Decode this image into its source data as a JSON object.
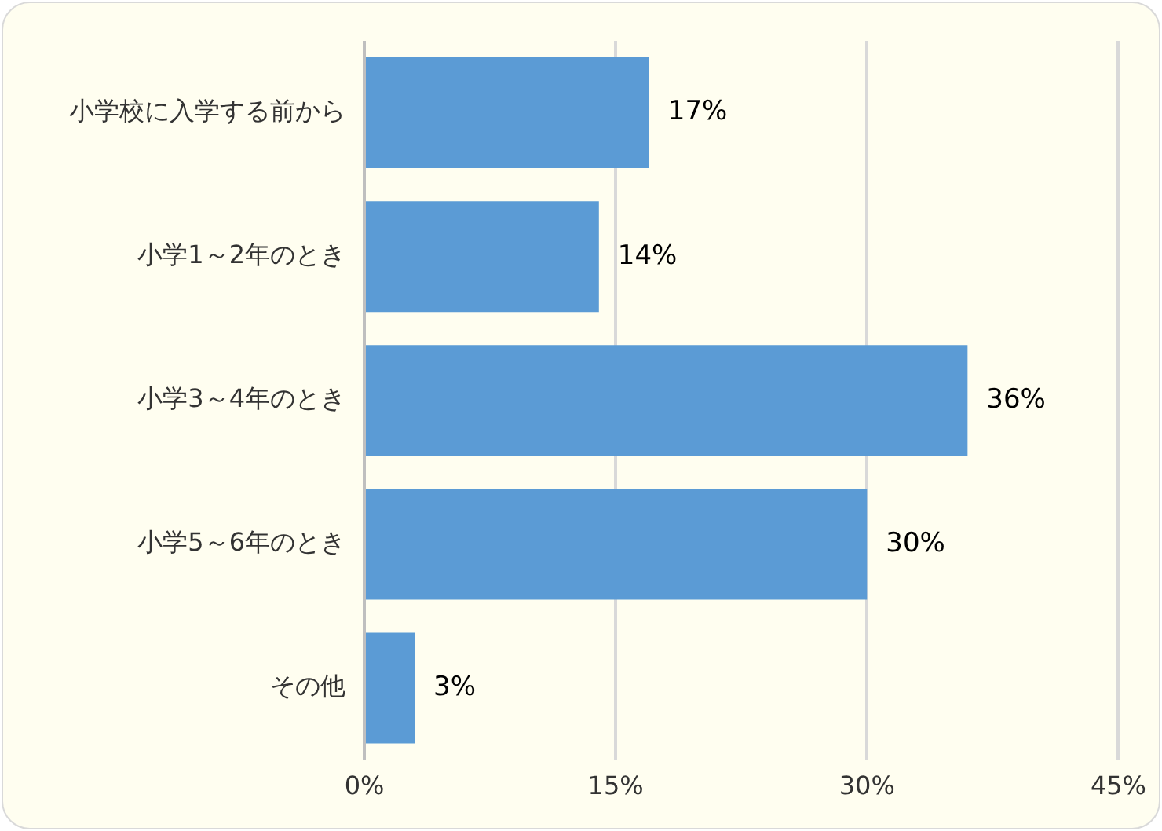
{
  "chart_data": {
    "type": "bar",
    "orientation": "horizontal",
    "categories": [
      "小学校に入学する前から",
      "小学1～2年のとき",
      "小学3～4年のとき",
      "小学5～6年のとき",
      "その他"
    ],
    "values": [
      17,
      14,
      36,
      30,
      3
    ],
    "color": "#5b9bd5",
    "value_labels": [
      "17%",
      "14%",
      "36%",
      "30%",
      "3%"
    ],
    "xlim": [
      0,
      45
    ],
    "xticks": [
      {
        "value": 0,
        "label": "0%"
      },
      {
        "value": 15,
        "label": "15%"
      },
      {
        "value": 30,
        "label": "30%"
      },
      {
        "value": 45,
        "label": "45%"
      }
    ],
    "grid": "x",
    "legend": false
  }
}
